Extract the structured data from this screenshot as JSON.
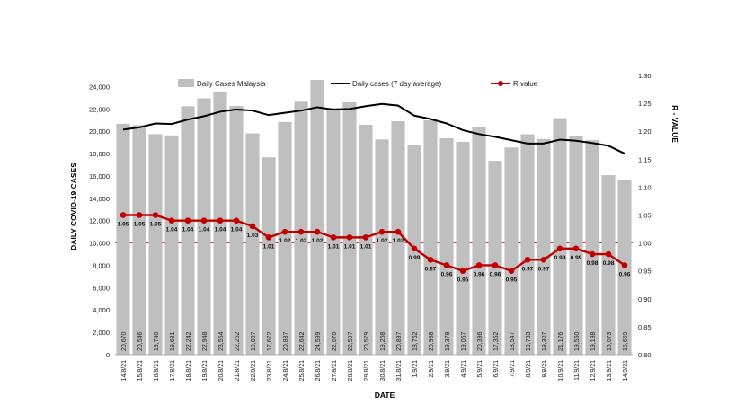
{
  "chart_data": {
    "type": "bar",
    "xlabel": "DATE",
    "ylabel": "DAILY COVID-19 CASES",
    "y2label": "R - VALUE",
    "ylim": [
      0,
      25000
    ],
    "y2lim": [
      0.8,
      1.3
    ],
    "y_ticks": [
      "0",
      "2,000",
      "4,000",
      "6,000",
      "8,000",
      "10,000",
      "12,000",
      "14,000",
      "16,000",
      "18,000",
      "20,000",
      "22,000",
      "24,000"
    ],
    "y2_ticks": [
      "0.80",
      "0.85",
      "0.90",
      "0.95",
      "1.00",
      "1.05",
      "1.10",
      "1.15",
      "1.20",
      "1.25",
      "1.30"
    ],
    "reference_line": 1.0,
    "categories": [
      "14/8/21",
      "15/8/21",
      "16/8/21",
      "17/8/21",
      "18/8/21",
      "19/8/21",
      "20/8/21",
      "21/8/21",
      "22/8/21",
      "23/8/21",
      "24/8/21",
      "25/8/21",
      "26/8/21",
      "27/8/21",
      "28/8/21",
      "29/8/21",
      "30/8/21",
      "31/8/21",
      "1/9/21",
      "2/9/21",
      "3/9/21",
      "4/9/21",
      "5/9/21",
      "6/9/21",
      "7/9/21",
      "8/9/21",
      "9/9/21",
      "10/9/21",
      "11/9/21",
      "12/9/21",
      "13/9/21",
      "14/9/21"
    ],
    "series": [
      {
        "name": "Daily Cases Malaysia",
        "kind": "bar",
        "color": "#bfbfbf",
        "values": [
          20670,
          20546,
          19740,
          19631,
          22242,
          22948,
          23564,
          22262,
          19807,
          17672,
          20837,
          22642,
          24599,
          22070,
          22597,
          20579,
          19268,
          20897,
          18762,
          20988,
          19378,
          19057,
          20396,
          17352,
          18547,
          19733,
          19307,
          21176,
          19550,
          19198,
          16073,
          15669
        ],
        "labels": [
          "20,670",
          "20,546",
          "19,740",
          "19,631",
          "22,242",
          "22,948",
          "23,564",
          "22,262",
          "19,807",
          "17,672",
          "20,837",
          "22,642",
          "24,599",
          "22,070",
          "22,597",
          "20,579",
          "19,268",
          "20,897",
          "18,762",
          "20,988",
          "19,378",
          "19,057",
          "20,396",
          "17,352",
          "18,547",
          "19,733",
          "19,307",
          "21,176",
          "19,550",
          "19,198",
          "16,073",
          "15,669"
        ]
      },
      {
        "name": "Daily cases (7 day average)",
        "kind": "line",
        "color": "#000000",
        "values": [
          20150,
          20350,
          20700,
          20650,
          21050,
          21350,
          21750,
          21950,
          21850,
          21450,
          21650,
          21850,
          22150,
          21950,
          22000,
          22250,
          22450,
          22300,
          21400,
          21100,
          20700,
          20100,
          19750,
          19500,
          19200,
          18900,
          18900,
          19250,
          19150,
          18950,
          18700,
          18000
        ]
      },
      {
        "name": "R value",
        "kind": "line-markers",
        "axis": "right",
        "color": "#c00000",
        "values": [
          1.05,
          1.05,
          1.05,
          1.04,
          1.04,
          1.04,
          1.04,
          1.04,
          1.03,
          1.01,
          1.02,
          1.02,
          1.02,
          1.01,
          1.01,
          1.01,
          1.02,
          1.02,
          0.99,
          0.97,
          0.96,
          0.95,
          0.96,
          0.96,
          0.95,
          0.97,
          0.97,
          0.99,
          0.99,
          0.98,
          0.98,
          0.96
        ],
        "labels": [
          "1.05",
          "1.05",
          "1.05",
          "1.04",
          "1.04",
          "1.04",
          "1.04",
          "1.04",
          "1.03",
          "1.01",
          "1.02",
          "1.02",
          "1.02",
          "1.01",
          "1.01",
          "1.01",
          "1.02",
          "1.02",
          "0.99",
          "0.97",
          "0.96",
          "0.95",
          "0.96",
          "0.96",
          "0.95",
          "0.97",
          "0.97",
          "0.99",
          "0.99",
          "0.98",
          "0.98",
          "0.96"
        ]
      }
    ],
    "legend": "top",
    "grid": false
  }
}
